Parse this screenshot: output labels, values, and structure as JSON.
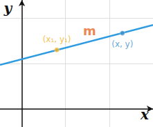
{
  "chart_data": {
    "type": "line",
    "x": [
      -0.5,
      3
    ],
    "values": [
      0.97,
      1.85
    ],
    "color": "#2e9be0",
    "points": [
      {
        "x": 0.8,
        "y": 1.3,
        "label": "(x₁, y₁)",
        "color": "#f2b01e"
      },
      {
        "x": 2.3,
        "y": 1.67,
        "label": "(x, y)",
        "color": "#3a8fc8"
      }
    ],
    "annotations": [
      {
        "text": "m",
        "x": 1.55,
        "y": 1.72,
        "color": "#e8661e"
      }
    ],
    "xlabel": "x",
    "ylabel": "y",
    "xlim": [
      -0.5,
      3
    ],
    "ylim": [
      -0.4,
      2.4
    ],
    "xticks": [
      0,
      1,
      2,
      3
    ],
    "yticks": [
      0,
      1,
      2
    ],
    "grid": true,
    "tick_labels": false
  }
}
